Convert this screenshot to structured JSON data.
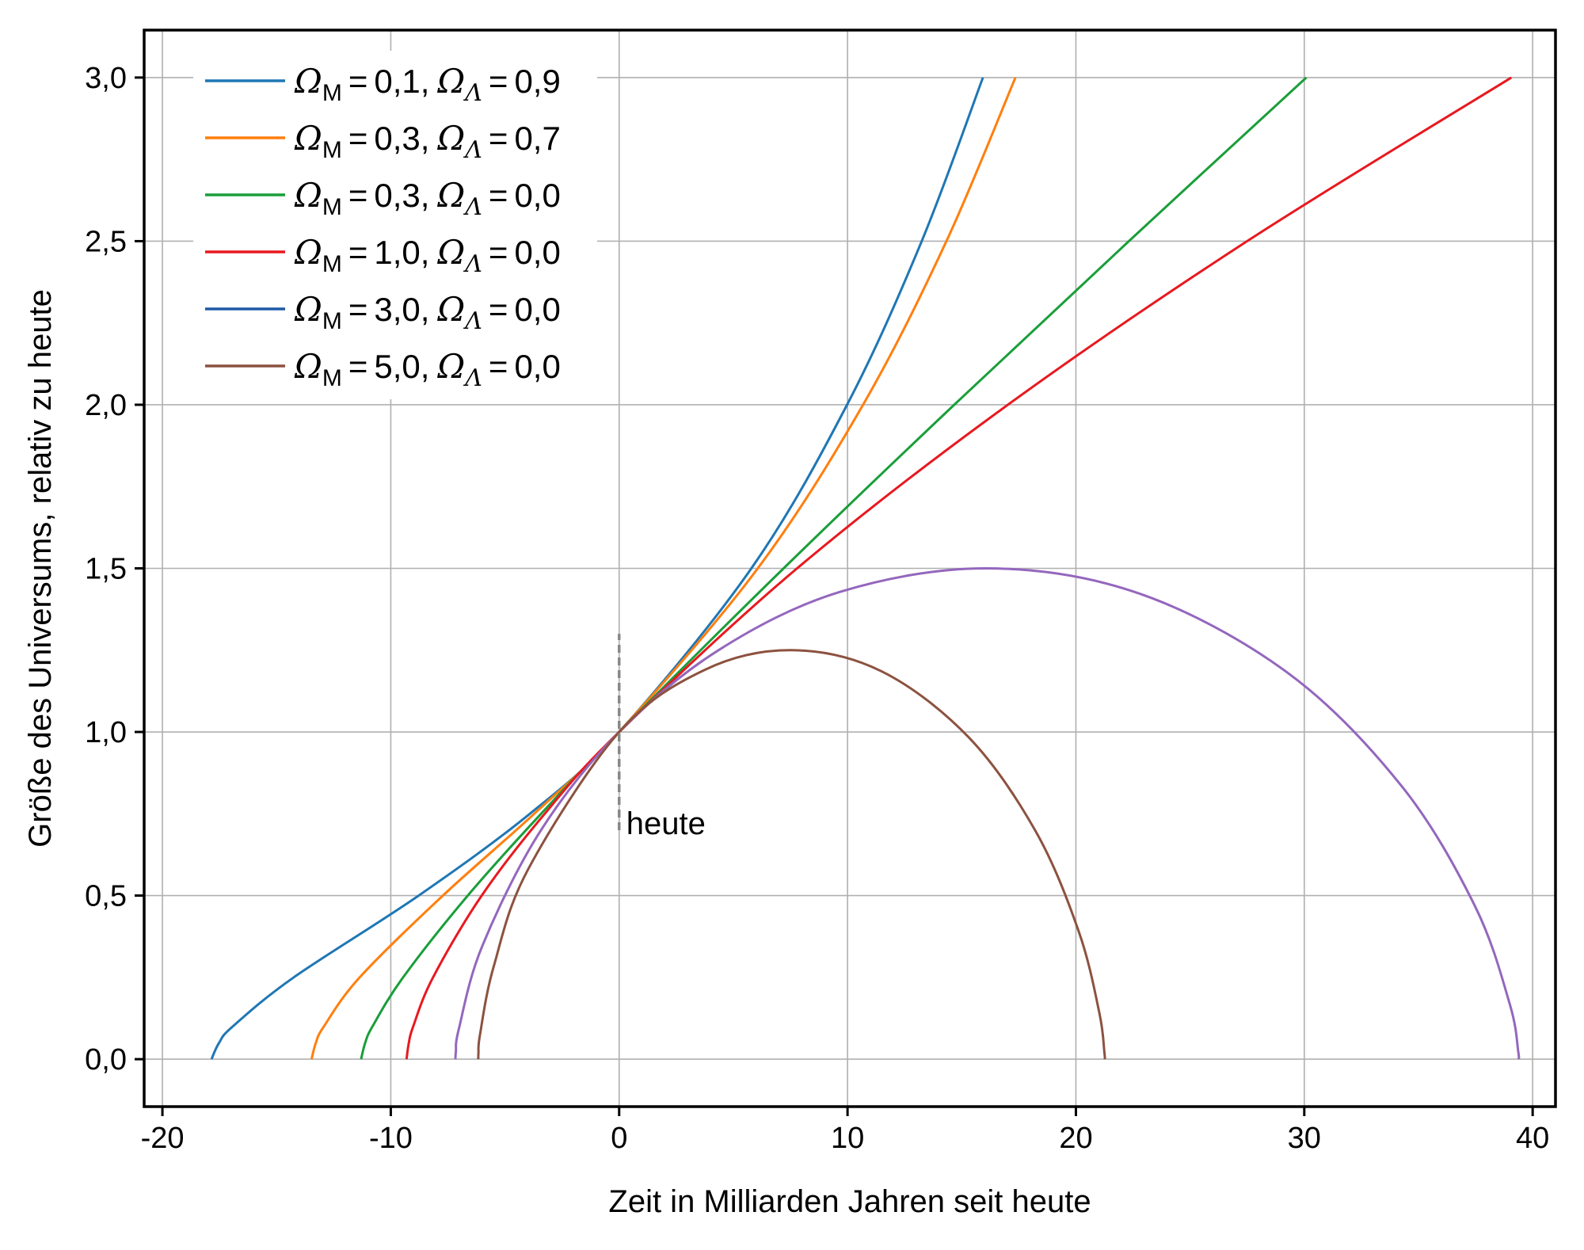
{
  "chart_data": {
    "type": "line",
    "title": "",
    "xlabel": "Zeit in Milliarden Jahren seit heute",
    "ylabel": "Größe des Universums, relativ zu heute",
    "xlim": [
      -20.8,
      41.0
    ],
    "ylim": [
      -0.145,
      3.145
    ],
    "xticks": [
      -20,
      -10,
      0,
      10,
      20,
      30,
      40
    ],
    "xtick_labels": [
      "-20",
      "-10",
      "0",
      "10",
      "20",
      "30",
      "40"
    ],
    "yticks": [
      0,
      0.5,
      1,
      1.5,
      2,
      2.5,
      3
    ],
    "ytick_labels": [
      "0,0",
      "0,5",
      "1,0",
      "1,5",
      "2,0",
      "2,5",
      "3,0"
    ],
    "grid": true,
    "legend_position": "top-left",
    "legend_symbols": {
      "omega": "Ω",
      "m": "M",
      "lambda": "Λ",
      "eq": "="
    },
    "annotation": {
      "text": "heute",
      "x": 0,
      "y_from": 0.7,
      "y_to": 1.3,
      "color": "#888888"
    },
    "series": [
      {
        "name": "ΩM = 0,1, ΩΛ = 0,9",
        "omega_m": "0,1",
        "omega_l": "0,9",
        "color": "#1f77b4",
        "legend_color": "#1f77b4",
        "x": [
          -17.85,
          -17.52,
          -16.92,
          -14.25,
          -8.78,
          -3.91,
          0,
          5.79,
          9.98,
          13.25,
          15.93
        ],
        "y": [
          0,
          0.05,
          0.1,
          0.25,
          0.5,
          0.75,
          1,
          1.5,
          2,
          2.5,
          3
        ]
      },
      {
        "name": "ΩM = 0,3, ΩΛ = 0,7",
        "omega_m": "0,3",
        "omega_l": "0,7",
        "color": "#ff7f0e",
        "legend_color": "#ff7f0e",
        "x": [
          -13.47,
          -13.28,
          -12.93,
          -11.36,
          -7.72,
          -3.72,
          0,
          6.07,
          10.68,
          14.33,
          17.35
        ],
        "y": [
          0,
          0.05,
          0.1,
          0.25,
          0.5,
          0.75,
          1,
          1.5,
          2,
          2.5,
          3
        ]
      },
      {
        "name": "ΩM = 0,3, ΩΛ = 0,0",
        "omega_m": "0,3",
        "omega_l": "0,0",
        "color": "#1a9e3a",
        "legend_color": "#1a9e3a",
        "x": [
          -11.3,
          -11.12,
          -10.8,
          -9.46,
          -6.63,
          -3.42,
          0,
          7.2,
          14.67,
          22.32,
          30.09
        ],
        "y": [
          0,
          0.05,
          0.1,
          0.25,
          0.5,
          0.75,
          1,
          1.5,
          2,
          2.5,
          3
        ]
      },
      {
        "name": "ΩM = 1,0, ΩΛ = 0,0",
        "omega_m": "1,0",
        "omega_l": "0,0",
        "color": "#e8191f",
        "legend_color": "#e8191f",
        "x": [
          -9.31,
          -9.21,
          -9.02,
          -8.15,
          -6.02,
          -3.26,
          0,
          7.79,
          17.02,
          27.5,
          39.07
        ],
        "y": [
          0,
          0.05,
          0.1,
          0.25,
          0.5,
          0.75,
          1,
          1.5,
          2,
          2.5,
          3
        ]
      },
      {
        "name": "ΩM = 3,0, ΩΛ = 0,0",
        "omega_m": "3,0",
        "omega_l": "0,0",
        "color": "#9467bd",
        "legend_color": "#1f5aa8",
        "x": [
          -7.17,
          -7.15,
          -7.02,
          -6.0,
          -3.45,
          0,
          4.35,
          9.67,
          16.11,
          22.78,
          29.27,
          34.27,
          37.48,
          39.0,
          39.37,
          39.38
        ],
        "y": [
          0,
          0.023,
          0.092,
          0.345,
          0.697,
          1,
          1.25,
          1.428,
          1.5,
          1.423,
          1.181,
          0.834,
          0.467,
          0.168,
          0.023,
          0
        ]
      },
      {
        "name": "ΩM = 5,0, ΩΛ = 0,0",
        "omega_m": "5,0",
        "omega_l": "0,0",
        "color": "#8c5240",
        "legend_color": "#8c5240",
        "x": [
          -6.17,
          -6.16,
          -6.09,
          -5.48,
          -3.98,
          0,
          3.75,
          7.54,
          11.47,
          15.3,
          18.25,
          20.13,
          21.03,
          21.25,
          21.26
        ],
        "y": [
          0,
          0.019,
          0.077,
          0.287,
          0.581,
          1,
          1.19,
          1.25,
          1.186,
          0.984,
          0.695,
          0.389,
          0.14,
          0.019,
          0
        ]
      }
    ]
  }
}
